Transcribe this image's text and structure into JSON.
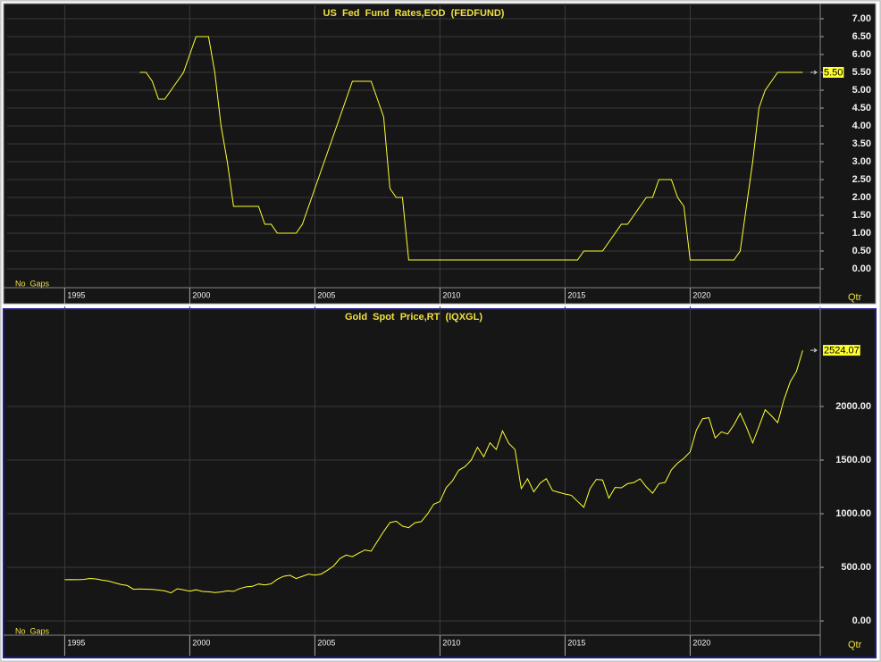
{
  "chart_data": [
    {
      "type": "line",
      "title": "US  Fed  Fund  Rates,EOD  (FEDFUND)",
      "note": "No  Gaps",
      "x_unit": "Qtr",
      "xlim": [
        1992.7,
        2025.2
      ],
      "xticks": [
        1995,
        2000,
        2005,
        2010,
        2015,
        2020
      ],
      "ylim": [
        -0.525,
        7.275
      ],
      "yticks": [
        {
          "value": 0,
          "label": "0.00"
        },
        {
          "value": 0.5,
          "label": "0.50"
        },
        {
          "value": 1,
          "label": "1.00"
        },
        {
          "value": 1.5,
          "label": "1.50"
        },
        {
          "value": 2,
          "label": "2.00"
        },
        {
          "value": 2.5,
          "label": "2.50"
        },
        {
          "value": 3,
          "label": "3.00"
        },
        {
          "value": 3.5,
          "label": "3.50"
        },
        {
          "value": 4,
          "label": "4.00"
        },
        {
          "value": 4.5,
          "label": "4.50"
        },
        {
          "value": 5,
          "label": "5.00"
        },
        {
          "value": 5.5,
          "label": "5.50"
        },
        {
          "value": 6,
          "label": "6.00"
        },
        {
          "value": 6.5,
          "label": "6.50"
        },
        {
          "value": 7,
          "label": "7.00"
        }
      ],
      "grid": true,
      "color": "#ffff33",
      "last_value_label": "5.50",
      "x": [
        1998,
        1998.25,
        1998.5,
        1998.75,
        1999,
        1999.25,
        1999.5,
        1999.75,
        2000,
        2000.25,
        2000.5,
        2000.75,
        2001,
        2001.25,
        2001.5,
        2001.75,
        2002,
        2002.25,
        2002.5,
        2002.75,
        2003,
        2003.25,
        2003.5,
        2003.75,
        2004,
        2004.25,
        2004.5,
        2004.75,
        2005,
        2005.25,
        2005.5,
        2005.75,
        2006,
        2006.25,
        2006.5,
        2006.75,
        2007,
        2007.25,
        2007.5,
        2007.75,
        2008,
        2008.25,
        2008.5,
        2008.75,
        2009,
        2009.25,
        2009.5,
        2009.75,
        2010,
        2010.25,
        2010.5,
        2010.75,
        2011,
        2011.25,
        2011.5,
        2011.75,
        2012,
        2012.25,
        2012.5,
        2012.75,
        2013,
        2013.25,
        2013.5,
        2013.75,
        2014,
        2014.25,
        2014.5,
        2014.75,
        2015,
        2015.25,
        2015.5,
        2015.75,
        2016,
        2016.25,
        2016.5,
        2016.75,
        2017,
        2017.25,
        2017.5,
        2017.75,
        2018,
        2018.25,
        2018.5,
        2018.75,
        2019,
        2019.25,
        2019.5,
        2019.75,
        2020,
        2020.25,
        2020.5,
        2020.75,
        2021,
        2021.25,
        2021.5,
        2021.75,
        2022,
        2022.25,
        2022.5,
        2022.75,
        2023,
        2023.25,
        2023.5,
        2023.75,
        2024,
        2024.25,
        2024.5
      ],
      "values": [
        5.5,
        5.5,
        5.25,
        4.75,
        4.75,
        5,
        5.25,
        5.5,
        6,
        6.5,
        6.5,
        6.5,
        5.5,
        4,
        3,
        1.75,
        1.75,
        1.75,
        1.75,
        1.75,
        1.25,
        1.25,
        1,
        1,
        1,
        1,
        1.25,
        1.75,
        2.25,
        2.75,
        3.25,
        3.75,
        4.25,
        4.75,
        5.25,
        5.25,
        5.25,
        5.25,
        4.75,
        4.25,
        2.25,
        2,
        2,
        0.25,
        0.25,
        0.25,
        0.25,
        0.25,
        0.25,
        0.25,
        0.25,
        0.25,
        0.25,
        0.25,
        0.25,
        0.25,
        0.25,
        0.25,
        0.25,
        0.25,
        0.25,
        0.25,
        0.25,
        0.25,
        0.25,
        0.25,
        0.25,
        0.25,
        0.25,
        0.25,
        0.25,
        0.5,
        0.5,
        0.5,
        0.5,
        0.75,
        1,
        1.25,
        1.25,
        1.5,
        1.75,
        2,
        2,
        2.5,
        2.5,
        2.5,
        2,
        1.75,
        0.25,
        0.25,
        0.25,
        0.25,
        0.25,
        0.25,
        0.25,
        0.25,
        0.5,
        1.75,
        3,
        4.5,
        5,
        5.25,
        5.5,
        5.5,
        5.5,
        5.5,
        5.5
      ]
    },
    {
      "type": "line",
      "title": "Gold  Spot  Price,RT  (IQXGL)",
      "note": "No  Gaps",
      "x_unit": "Qtr",
      "xlim": [
        1992.7,
        2025.2
      ],
      "xticks": [
        1995,
        2000,
        2005,
        2010,
        2015,
        2020
      ],
      "ylim": [
        -133,
        2883
      ],
      "yticks": [
        {
          "value": 0,
          "label": "0.00"
        },
        {
          "value": 500,
          "label": "500.00"
        },
        {
          "value": 1000,
          "label": "1000.00"
        },
        {
          "value": 1500,
          "label": "1500.00"
        },
        {
          "value": 2000,
          "label": "2000.00"
        }
      ],
      "grid": true,
      "color": "#ffff33",
      "last_value_label": "2524.07",
      "x": [
        1995,
        1995.25,
        1995.5,
        1995.75,
        1996,
        1996.25,
        1996.5,
        1996.75,
        1997,
        1997.25,
        1997.5,
        1997.75,
        1998,
        1998.25,
        1998.5,
        1998.75,
        1999,
        1999.25,
        1999.5,
        1999.75,
        2000,
        2000.25,
        2000.5,
        2000.75,
        2001,
        2001.25,
        2001.5,
        2001.75,
        2002,
        2002.25,
        2002.5,
        2002.75,
        2003,
        2003.25,
        2003.5,
        2003.75,
        2004,
        2004.25,
        2004.5,
        2004.75,
        2005,
        2005.25,
        2005.5,
        2005.75,
        2006,
        2006.25,
        2006.5,
        2006.75,
        2007,
        2007.25,
        2007.5,
        2007.75,
        2008,
        2008.25,
        2008.5,
        2008.75,
        2009,
        2009.25,
        2009.5,
        2009.75,
        2010,
        2010.25,
        2010.5,
        2010.75,
        2011,
        2011.25,
        2011.5,
        2011.75,
        2012,
        2012.25,
        2012.5,
        2012.75,
        2013,
        2013.25,
        2013.5,
        2013.75,
        2014,
        2014.25,
        2014.5,
        2014.75,
        2015,
        2015.25,
        2015.5,
        2015.75,
        2016,
        2016.25,
        2016.5,
        2016.75,
        2017,
        2017.25,
        2017.5,
        2017.75,
        2018,
        2018.25,
        2018.5,
        2018.75,
        2019,
        2019.25,
        2019.5,
        2019.75,
        2020,
        2020.25,
        2020.5,
        2020.75,
        2021,
        2021.25,
        2021.5,
        2021.75,
        2022,
        2022.25,
        2022.5,
        2022.75,
        2023,
        2023.25,
        2023.5,
        2023.75,
        2024,
        2024.25,
        2024.5
      ],
      "values": [
        384,
        386,
        384,
        387,
        396,
        392,
        380,
        372,
        355,
        340,
        330,
        295,
        298,
        296,
        294,
        288,
        280,
        262,
        300,
        290,
        278,
        290,
        275,
        272,
        264,
        270,
        280,
        276,
        302,
        318,
        323,
        344,
        335,
        346,
        389,
        416,
        426,
        395,
        416,
        437,
        427,
        437,
        473,
        513,
        582,
        614,
        599,
        632,
        662,
        650,
        743,
        834,
        917,
        930,
        884,
        869,
        916,
        926,
        996,
        1088,
        1113,
        1243,
        1307,
        1405,
        1439,
        1500,
        1620,
        1531,
        1662,
        1598,
        1772,
        1657,
        1598,
        1234,
        1326,
        1204,
        1284,
        1327,
        1216,
        1199,
        1183,
        1172,
        1115,
        1060,
        1234,
        1320,
        1315,
        1146,
        1245,
        1242,
        1280,
        1291,
        1325,
        1250,
        1191,
        1281,
        1292,
        1409,
        1472,
        1517,
        1577,
        1781,
        1886,
        1895,
        1707,
        1763,
        1743,
        1829,
        1937,
        1807,
        1660,
        1813,
        1969,
        1912,
        1849,
        2063,
        2230,
        2327,
        2524.07
      ]
    }
  ]
}
